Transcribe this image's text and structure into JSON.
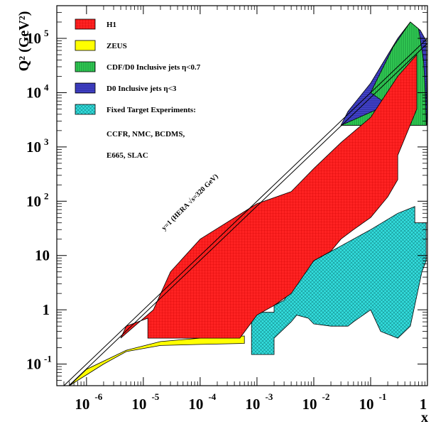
{
  "chart_data": {
    "type": "area",
    "xlabel": "x",
    "ylabel": "Q² (GeV²)",
    "x_scale": "log",
    "y_scale": "log",
    "xlim": [
      3e-07,
      1
    ],
    "ylim": [
      0.04,
      400000
    ],
    "x_ticks": [
      {
        "value": 1e-06,
        "base": "10",
        "exp": "-6"
      },
      {
        "value": 1e-05,
        "base": "10",
        "exp": "-5"
      },
      {
        "value": 0.0001,
        "base": "10",
        "exp": "-4"
      },
      {
        "value": 0.001,
        "base": "10",
        "exp": "-3"
      },
      {
        "value": 0.01,
        "base": "10",
        "exp": "-2"
      },
      {
        "value": 0.1,
        "base": "10",
        "exp": "-1"
      },
      {
        "value": 1,
        "base": "1",
        "exp": ""
      }
    ],
    "y_ticks": [
      {
        "value": 0.1,
        "base": "10",
        "exp": "-1"
      },
      {
        "value": 1,
        "base": "1",
        "exp": ""
      },
      {
        "value": 10,
        "base": "10",
        "exp": ""
      },
      {
        "value": 100,
        "base": "10",
        "exp": "2"
      },
      {
        "value": 1000,
        "base": "10",
        "exp": "3"
      },
      {
        "value": 10000,
        "base": "10",
        "exp": "4"
      },
      {
        "value": 100000,
        "base": "10",
        "exp": "5"
      }
    ],
    "series": [
      {
        "name": "Fixed Target Experiments:",
        "color": "#33dddd",
        "points": [
          [
            0.0008,
            0.15
          ],
          [
            0.0008,
            0.9
          ],
          [
            0.002,
            0.9
          ],
          [
            0.002,
            1.2
          ],
          [
            0.003,
            1.5
          ],
          [
            0.006,
            5
          ],
          [
            0.01,
            8
          ],
          [
            0.03,
            15
          ],
          [
            0.1,
            30
          ],
          [
            0.3,
            60
          ],
          [
            0.6,
            80
          ],
          [
            0.6,
            40
          ],
          [
            0.95,
            40
          ],
          [
            0.95,
            8
          ],
          [
            0.8,
            5
          ],
          [
            0.5,
            0.5
          ],
          [
            0.3,
            0.3
          ],
          [
            0.15,
            0.4
          ],
          [
            0.1,
            1
          ],
          [
            0.05,
            0.6
          ],
          [
            0.04,
            0.5
          ],
          [
            0.02,
            0.5
          ],
          [
            0.01,
            0.55
          ],
          [
            0.008,
            0.7
          ],
          [
            0.005,
            0.8
          ],
          [
            0.004,
            0.6
          ],
          [
            0.002,
            0.3
          ],
          [
            0.002,
            0.15
          ]
        ]
      },
      {
        "name": "D0  Inclusive jets η<3",
        "color": "#4444cc",
        "points": [
          [
            0.03,
            2500
          ],
          [
            0.04,
            4500
          ],
          [
            0.1,
            15000
          ],
          [
            0.3,
            100000
          ],
          [
            0.5,
            200000
          ],
          [
            0.75,
            140000
          ],
          [
            0.95,
            90000
          ],
          [
            0.98,
            5000
          ],
          [
            0.97,
            2500
          ]
        ]
      },
      {
        "name": "CDF/D0  Inclusive jets η<0.7",
        "color": "#33cc55",
        "points": [
          [
            0.03,
            2500
          ],
          [
            0.2,
            6000
          ],
          [
            0.1,
            10000
          ],
          [
            0.25,
            70000
          ],
          [
            0.5,
            200000
          ],
          [
            0.7,
            150000
          ],
          [
            0.85,
            40000
          ],
          [
            0.92,
            10000
          ],
          [
            0.95,
            2500
          ]
        ]
      },
      {
        "name": "ZEUS",
        "color": "#ffff00",
        "points": [
          [
            5e-07,
            0.04
          ],
          [
            1e-06,
            0.08
          ],
          [
            5e-06,
            0.18
          ],
          [
            2e-05,
            0.26
          ],
          [
            0.0001,
            0.3
          ],
          [
            0.0006,
            0.33
          ],
          [
            0.0006,
            0.24
          ],
          [
            0.0001,
            0.23
          ],
          [
            2e-05,
            0.22
          ],
          [
            5e-06,
            0.17
          ],
          [
            2e-06,
            0.1
          ],
          [
            7e-07,
            0.05
          ]
        ]
      },
      {
        "name": "H1",
        "color": "#ff2222",
        "points": [
          [
            4e-06,
            0.3
          ],
          [
            1.5e-05,
            1
          ],
          [
            3e-05,
            5
          ],
          [
            0.0001,
            20
          ],
          [
            0.001,
            90
          ],
          [
            0.004,
            150
          ],
          [
            0.01,
            400
          ],
          [
            0.03,
            1200
          ],
          [
            0.1,
            3500
          ],
          [
            0.3,
            20000
          ],
          [
            0.65,
            50000
          ],
          [
            0.65,
            5000
          ],
          [
            0.3,
            700
          ],
          [
            0.3,
            250
          ],
          [
            0.2,
            120
          ],
          [
            0.1,
            50
          ],
          [
            0.05,
            30
          ],
          [
            0.03,
            20
          ],
          [
            0.02,
            12
          ],
          [
            0.01,
            8
          ],
          [
            0.004,
            2
          ],
          [
            0.002,
            1.2
          ],
          [
            0.001,
            0.8
          ],
          [
            0.0005,
            0.3
          ],
          [
            1.2e-05,
            0.3
          ],
          [
            1.2e-05,
            0.7
          ],
          [
            5e-06,
            0.5
          ]
        ]
      }
    ],
    "legend": {
      "position": "top-left",
      "entries": [
        {
          "label": "H1",
          "color": "#ff2222",
          "pattern": "grid"
        },
        {
          "label": "ZEUS",
          "color": "#ffff00",
          "pattern": "solid"
        },
        {
          "label": "CDF/D0  Inclusive jets η<0.7",
          "color": "#33cc55",
          "pattern": "vertical"
        },
        {
          "label": "D0  Inclusive jets η<3",
          "color": "#4444cc",
          "pattern": "horizontal"
        },
        {
          "label": "Fixed Target Experiments:",
          "color": "#33dddd",
          "pattern": "cross"
        }
      ],
      "notes": [
        "CCFR, NMC, BCDMS,",
        "E665, SLAC"
      ]
    },
    "annotations": [
      {
        "text": "y=1 (HERA √s=320 GeV)",
        "x": 7e-05,
        "y": 90,
        "angle_deg": -45
      }
    ],
    "reference_line": {
      "label": "y=1",
      "points": [
        [
          4e-07,
          0.04
        ],
        [
          1,
          100000
        ]
      ]
    }
  }
}
